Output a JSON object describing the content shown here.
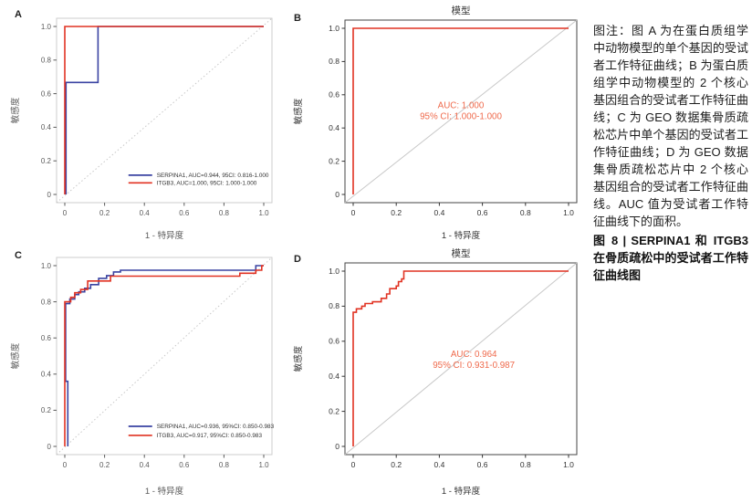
{
  "colors": {
    "serpina1_blue": "#3a43a2",
    "itgb3_red": "#e13222",
    "annotation_orange": "#ef6a4c",
    "diagonal_gray": "#c8c8c8"
  },
  "caption": {
    "body": "图注：图 A 为在蛋白质组学中动物模型的单个基因的受试者工作特征曲线；B 为蛋白质组学中动物模型的 2 个核心基因组合的受试者工作特征曲线；C 为 GEO 数据集骨质疏松芯片中单个基因的受试者工作特征曲线；D 为 GEO 数据集骨质疏松芯片中 2 个核心基因组合的受试者工作特征曲线。AUC 值为受试者工作特征曲线下的面积。",
    "title": "图 8 | SERPINA1 和 ITGB3 在骨质疏松中的受试者工作特征曲线图"
  },
  "chart_data": [
    {
      "panel": "A",
      "type": "line",
      "subtype": "roc-step",
      "title": "",
      "xlabel": "1 - 特异度",
      "ylabel": "敏感度",
      "xlim": [
        0,
        1
      ],
      "ylim": [
        0,
        1
      ],
      "xticks": [
        "0",
        "0.2",
        "0.4",
        "0.6",
        "0.8",
        "1.0"
      ],
      "yticks": [
        "0",
        "0.2",
        "0.4",
        "0.6",
        "0.8",
        "1.0"
      ],
      "frame": "light",
      "diagonal": "dotted",
      "series": [
        {
          "name": "SERPINA1",
          "auc": 0.944,
          "ci_95": "0.816-1.000",
          "color": "#3a43a2",
          "points": [
            [
              0.006,
              0
            ],
            [
              0.006,
              0.667
            ],
            [
              0.167,
              0.667
            ],
            [
              0.167,
              1
            ],
            [
              1,
              1
            ]
          ]
        },
        {
          "name": "ITGB3",
          "auc": 1.0,
          "ci_95": "1.000-1.000",
          "color": "#e13222",
          "points": [
            [
              0,
              0
            ],
            [
              0,
              1
            ],
            [
              1,
              1
            ]
          ]
        }
      ],
      "legend": {
        "pos": [
          0.32,
          0.115
        ],
        "dy": 0.046,
        "items": [
          {
            "color": "#3a43a2",
            "label": "SERPINA1, AUC=0.944, 95CI: 0.816-1.000"
          },
          {
            "color": "#e13222",
            "label": "ITGB3, AUC=1.000, 95CI: 1.000-1.000"
          }
        ]
      }
    },
    {
      "panel": "B",
      "type": "line",
      "subtype": "roc-step",
      "title": "模型",
      "xlabel": "1 - 特异度",
      "ylabel": "敏感度",
      "xlim": [
        0,
        1
      ],
      "ylim": [
        0,
        1
      ],
      "xticks": [
        "0",
        "0.2",
        "0.4",
        "0.6",
        "0.8",
        "1.0"
      ],
      "yticks": [
        "0",
        "0.2",
        "0.4",
        "0.6",
        "0.8",
        "1.0"
      ],
      "frame": "dark",
      "diagonal": "solid",
      "series": [
        {
          "name": "模型",
          "auc": 1.0,
          "ci_95": "1.000-1.000",
          "color": "#e13222",
          "points": [
            [
              0,
              0
            ],
            [
              0,
              1
            ],
            [
              1,
              1
            ]
          ]
        }
      ],
      "annotation": {
        "pos": [
          0.5,
          0.52
        ],
        "color": "#ef6a4c",
        "lines": [
          "AUC: 1.000",
          "95% CI: 1.000-1.000"
        ]
      }
    },
    {
      "panel": "C",
      "type": "line",
      "subtype": "roc-step",
      "title": "",
      "xlabel": "1 - 特异度",
      "ylabel": "敏感度",
      "xlim": [
        0,
        1
      ],
      "ylim": [
        0,
        1
      ],
      "xticks": [
        "0",
        "0.2",
        "0.4",
        "0.6",
        "0.8",
        "1.0"
      ],
      "yticks": [
        "0",
        "0.2",
        "0.4",
        "0.6",
        "0.8",
        "1.0"
      ],
      "frame": "light",
      "diagonal": "dotted",
      "series": [
        {
          "name": "SERPINA1",
          "auc": 0.936,
          "ci_95": "0.850-0.983",
          "color": "#3a43a2",
          "points": [
            [
              0.015,
              0
            ],
            [
              0.015,
              0.36
            ],
            [
              0.004,
              0.36
            ],
            [
              0.004,
              0.79
            ],
            [
              0.025,
              0.79
            ],
            [
              0.025,
              0.815
            ],
            [
              0.05,
              0.815
            ],
            [
              0.05,
              0.84
            ],
            [
              0.07,
              0.84
            ],
            [
              0.07,
              0.855
            ],
            [
              0.1,
              0.855
            ],
            [
              0.1,
              0.875
            ],
            [
              0.13,
              0.875
            ],
            [
              0.13,
              0.895
            ],
            [
              0.17,
              0.895
            ],
            [
              0.17,
              0.93
            ],
            [
              0.21,
              0.93
            ],
            [
              0.21,
              0.945
            ],
            [
              0.245,
              0.945
            ],
            [
              0.245,
              0.965
            ],
            [
              0.28,
              0.965
            ],
            [
              0.28,
              0.975
            ],
            [
              0.96,
              0.975
            ],
            [
              0.96,
              1
            ],
            [
              1,
              1
            ]
          ]
        },
        {
          "name": "ITGB3",
          "auc": 0.917,
          "ci_95": "0.850-0.983",
          "color": "#e13222",
          "points": [
            [
              0,
              0
            ],
            [
              0,
              0.8
            ],
            [
              0.03,
              0.8
            ],
            [
              0.03,
              0.825
            ],
            [
              0.05,
              0.825
            ],
            [
              0.05,
              0.85
            ],
            [
              0.08,
              0.85
            ],
            [
              0.08,
              0.868
            ],
            [
              0.115,
              0.868
            ],
            [
              0.115,
              0.915
            ],
            [
              0.23,
              0.915
            ],
            [
              0.23,
              0.942
            ],
            [
              0.88,
              0.942
            ],
            [
              0.88,
              0.958
            ],
            [
              0.96,
              0.958
            ],
            [
              0.96,
              0.975
            ],
            [
              0.99,
              0.975
            ],
            [
              0.99,
              1
            ],
            [
              1,
              1
            ]
          ]
        }
      ],
      "legend": {
        "pos": [
          0.32,
          0.111
        ],
        "dy": 0.05,
        "items": [
          {
            "color": "#3a43a2",
            "label": "SERPINA1, AUC=0.936, 95%CI: 0.850-0.983"
          },
          {
            "color": "#e13222",
            "label": "ITGB3, AUC=0.917, 95%CI: 0.850-0.983"
          }
        ]
      }
    },
    {
      "panel": "D",
      "type": "line",
      "subtype": "roc-step",
      "title": "模型",
      "xlabel": "1 - 特异度",
      "ylabel": "敏感度",
      "xlim": [
        0,
        1
      ],
      "ylim": [
        0,
        1
      ],
      "xticks": [
        "0",
        "0.2",
        "0.4",
        "0.6",
        "0.8",
        "1.0"
      ],
      "yticks": [
        "0",
        "0.2",
        "0.4",
        "0.6",
        "0.8",
        "1.0"
      ],
      "frame": "dark",
      "diagonal": "solid",
      "series": [
        {
          "name": "模型",
          "auc": 0.964,
          "ci_95": "0.931-0.987",
          "color": "#e13222",
          "points": [
            [
              0,
              0
            ],
            [
              0,
              0.765
            ],
            [
              0.015,
              0.765
            ],
            [
              0.015,
              0.785
            ],
            [
              0.04,
              0.785
            ],
            [
              0.04,
              0.8
            ],
            [
              0.055,
              0.8
            ],
            [
              0.055,
              0.815
            ],
            [
              0.09,
              0.815
            ],
            [
              0.09,
              0.825
            ],
            [
              0.13,
              0.825
            ],
            [
              0.13,
              0.845
            ],
            [
              0.155,
              0.845
            ],
            [
              0.155,
              0.87
            ],
            [
              0.17,
              0.87
            ],
            [
              0.17,
              0.9
            ],
            [
              0.2,
              0.9
            ],
            [
              0.2,
              0.915
            ],
            [
              0.21,
              0.915
            ],
            [
              0.21,
              0.94
            ],
            [
              0.225,
              0.94
            ],
            [
              0.225,
              0.955
            ],
            [
              0.235,
              0.955
            ],
            [
              0.235,
              1
            ],
            [
              1,
              1
            ]
          ]
        }
      ],
      "annotation": {
        "pos": [
          0.56,
          0.51
        ],
        "color": "#ef6a4c",
        "lines": [
          "AUC: 0.964",
          "95% CI: 0.931-0.987"
        ]
      }
    }
  ]
}
